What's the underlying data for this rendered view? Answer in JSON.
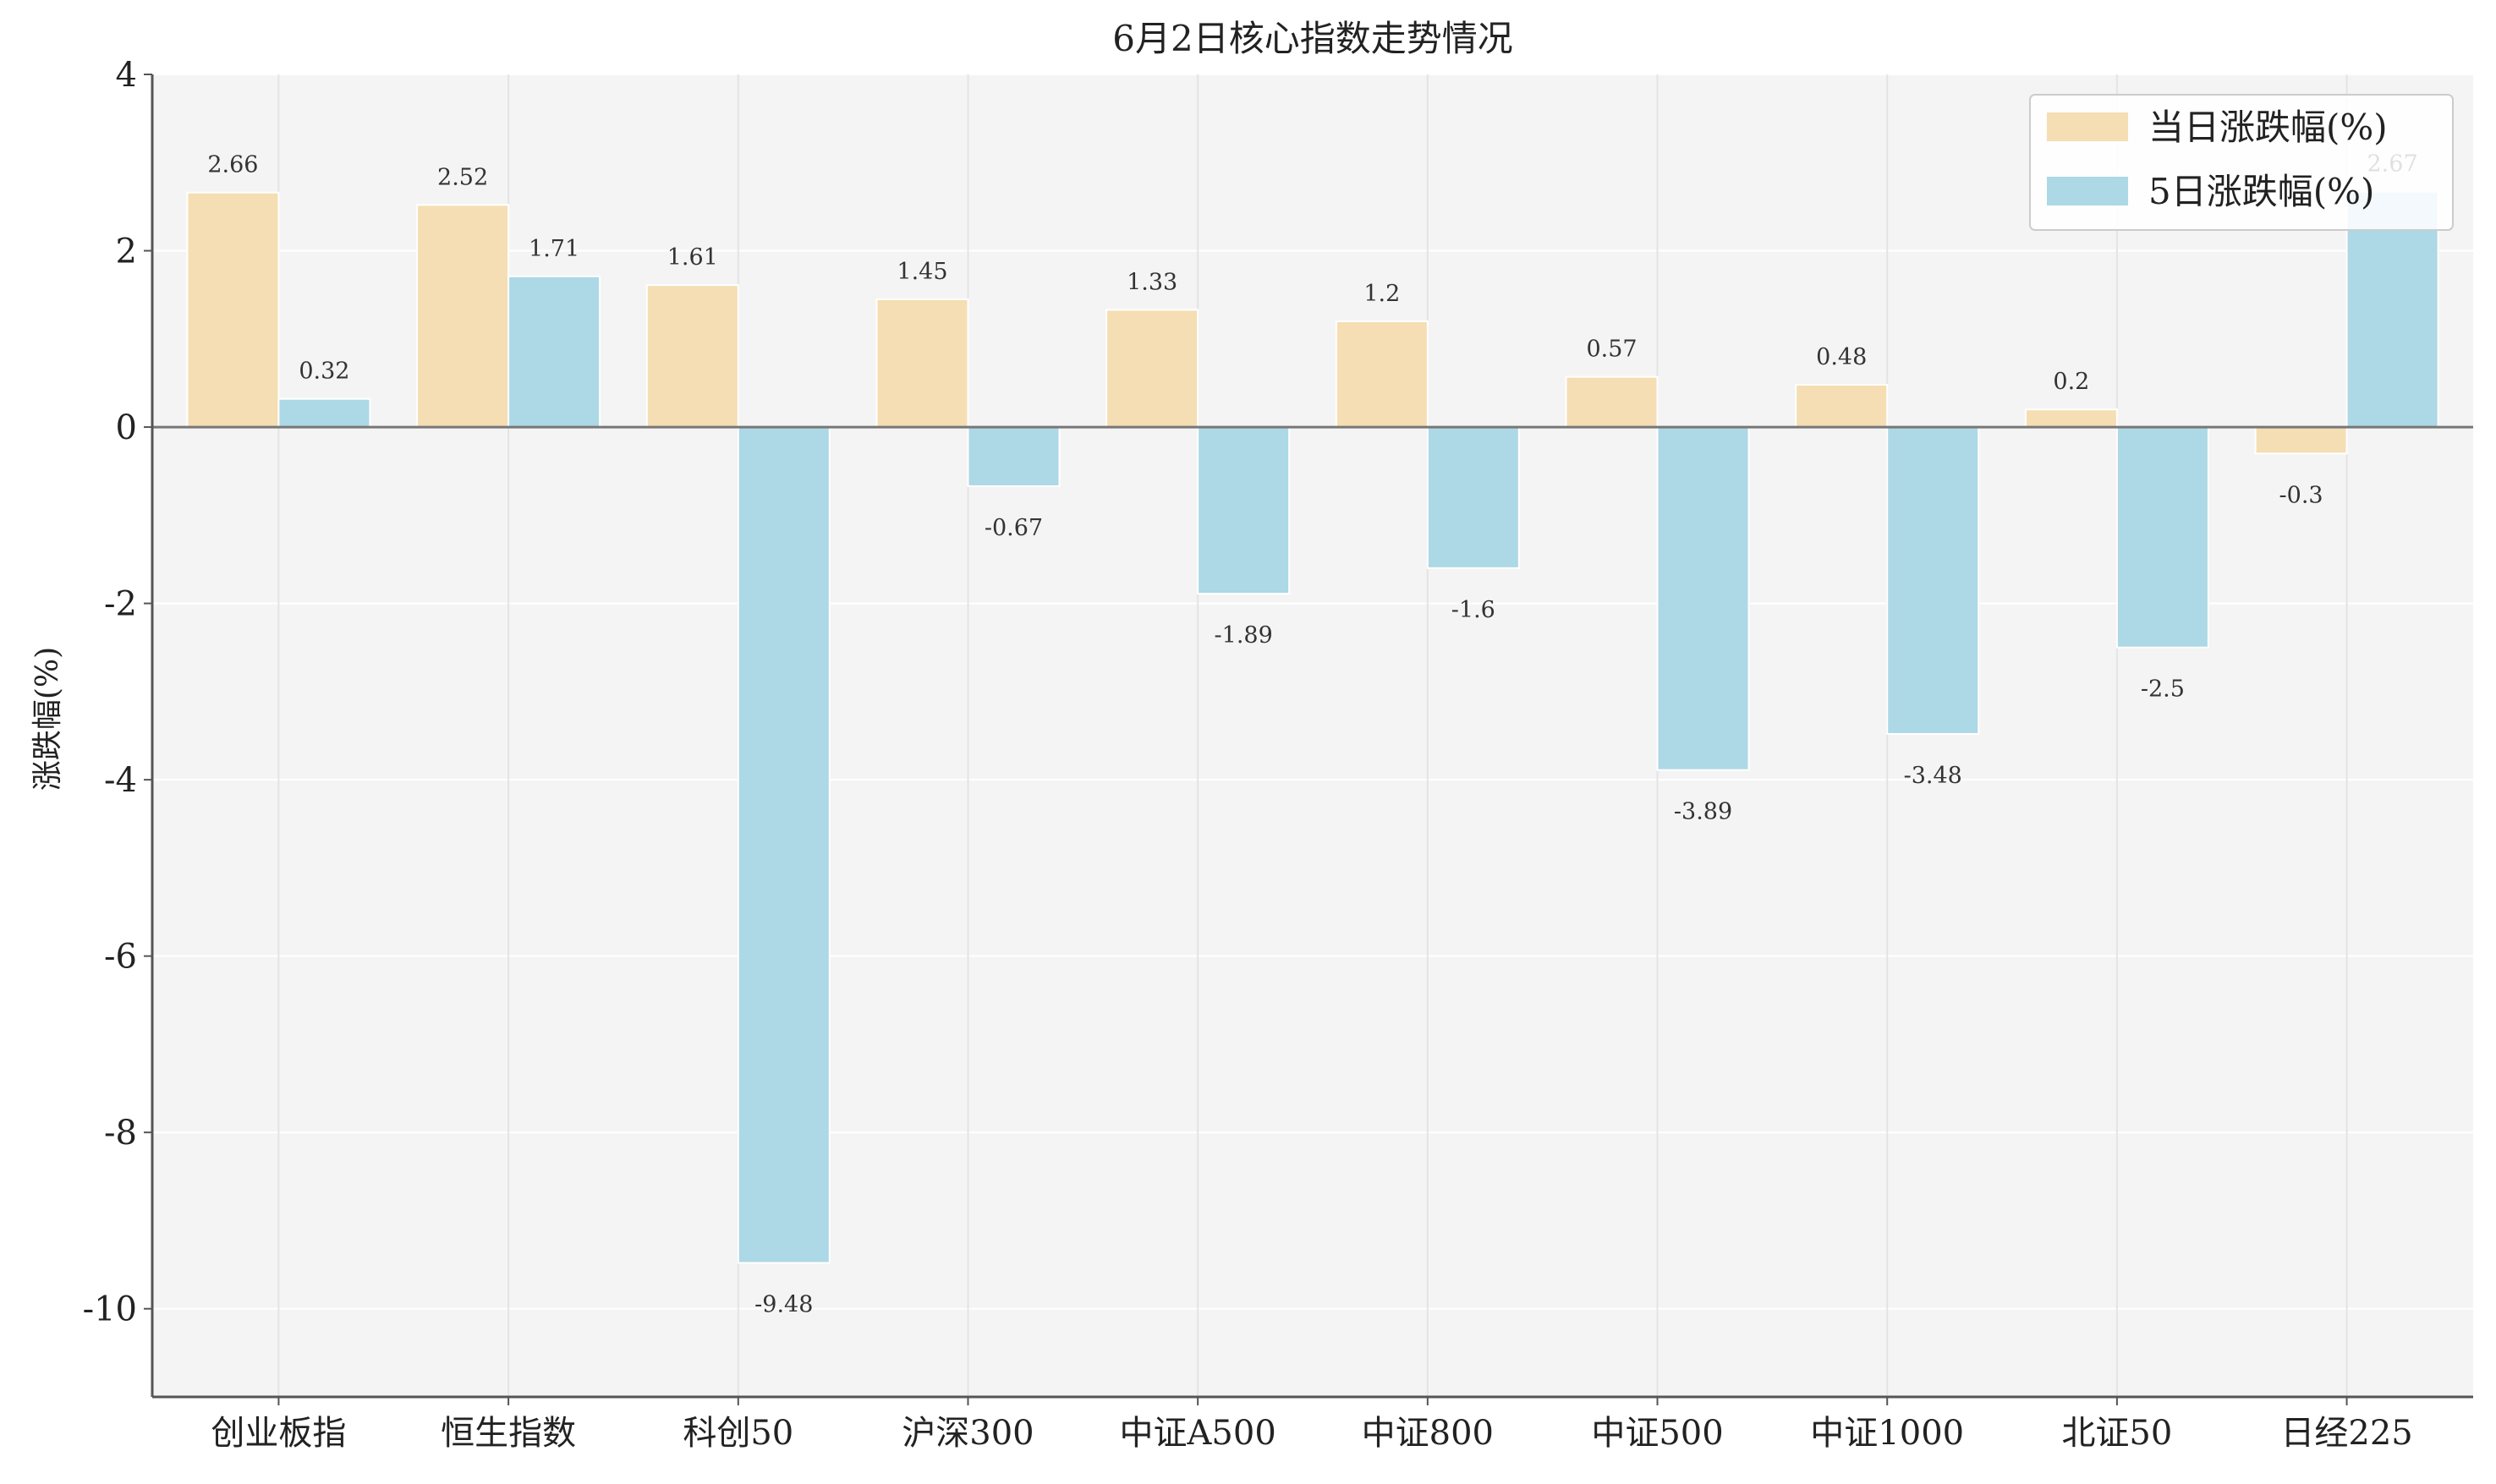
{
  "chart_data": {
    "type": "bar",
    "title": "6月2日核心指数走势情况",
    "xlabel": "",
    "ylabel": "涨跌幅(%)",
    "ylim": [
      -11,
      4
    ],
    "yticks": [
      4,
      2,
      0,
      -2,
      -4,
      -6,
      -8,
      -10
    ],
    "grid": true,
    "legend_position": "top-right",
    "categories": [
      "创业板指",
      "恒生指数",
      "科创50",
      "沪深300",
      "中证A500",
      "中证800",
      "中证500",
      "中证1000",
      "北证50",
      "日经225"
    ],
    "series": [
      {
        "name": "当日涨跌幅(%)",
        "color": "#f5deb3",
        "values": [
          2.66,
          2.52,
          1.61,
          1.45,
          1.33,
          1.2,
          0.57,
          0.48,
          0.2,
          -0.3
        ]
      },
      {
        "name": "5日涨跌幅(%)",
        "color": "#add8e6",
        "values": [
          0.32,
          1.71,
          -9.48,
          -0.67,
          -1.89,
          -1.6,
          -3.89,
          -3.48,
          -2.5,
          2.67
        ]
      }
    ]
  }
}
